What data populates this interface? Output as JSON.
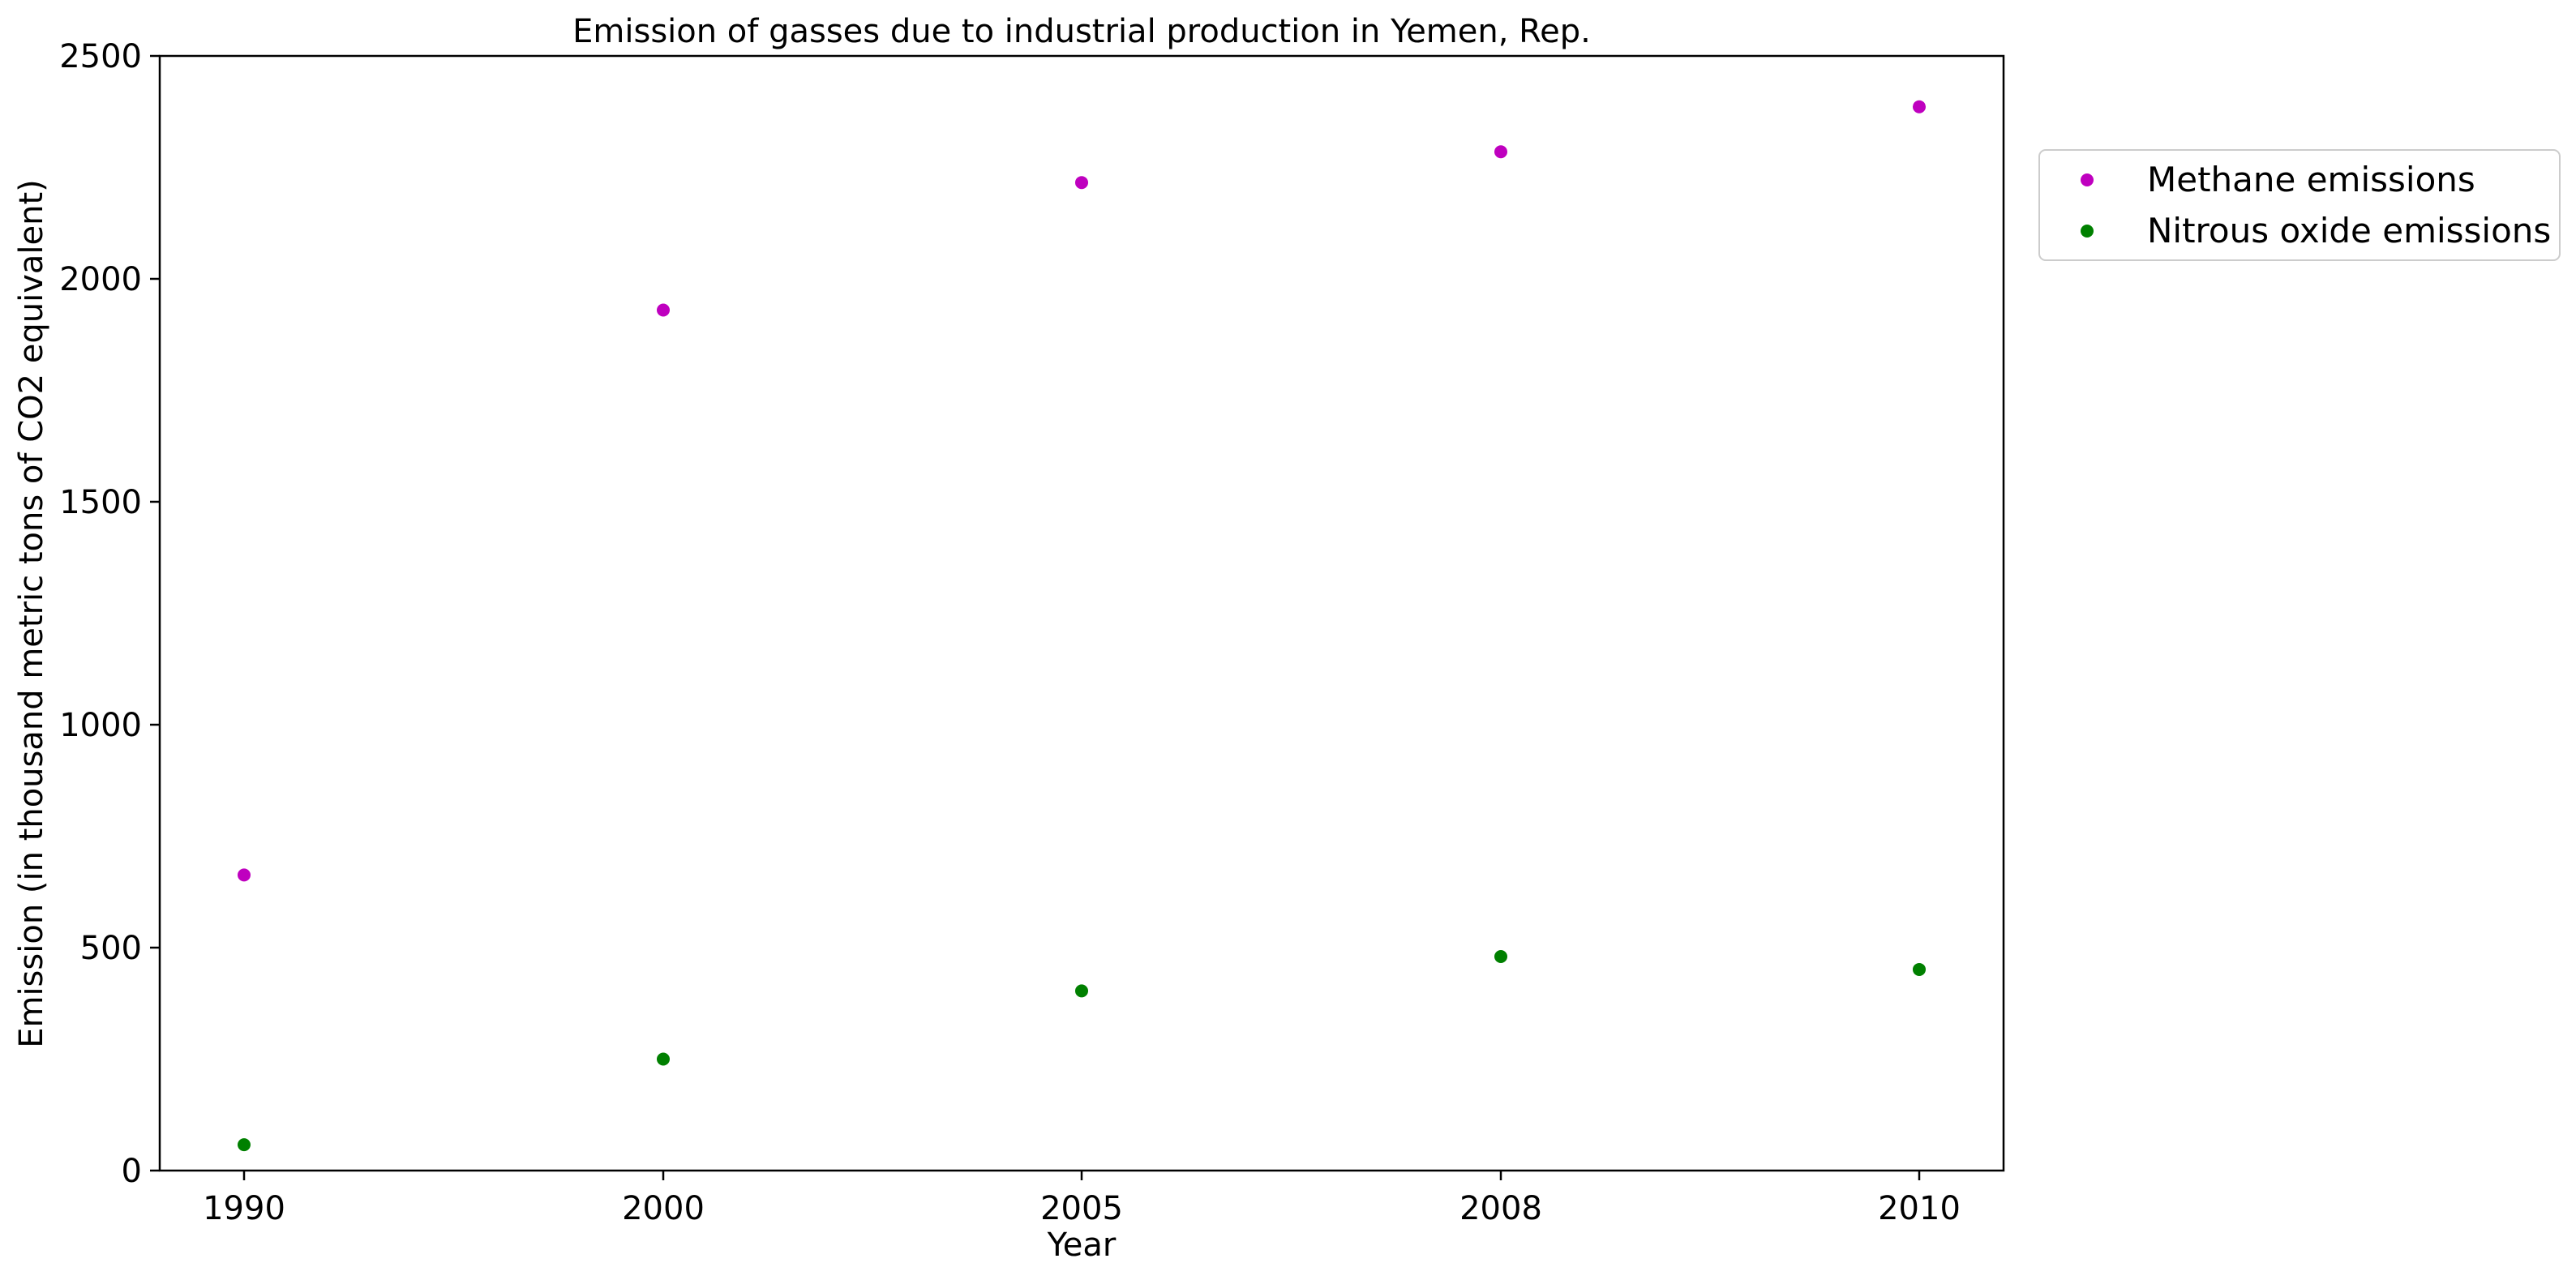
{
  "chart_data": {
    "type": "scatter",
    "title": "Emission of gasses due to industrial production in Yemen, Rep.",
    "xlabel": "Year",
    "ylabel": "Emission (in thousand metric tons of CO2 equivalent)",
    "categories": [
      "1990",
      "2000",
      "2005",
      "2008",
      "2010"
    ],
    "ylim": [
      0,
      2500
    ],
    "yticks": [
      0,
      500,
      1000,
      1500,
      2000,
      2500
    ],
    "grid": false,
    "legend_position": "outside-top-right",
    "series": [
      {
        "name": "Methane emissions",
        "color": "#bf00bf",
        "values": [
          663,
          1930,
          2216,
          2285,
          2386
        ]
      },
      {
        "name": "Nitrous oxide emissions",
        "color": "#008000",
        "values": [
          58,
          250,
          403,
          480,
          451
        ]
      }
    ]
  }
}
